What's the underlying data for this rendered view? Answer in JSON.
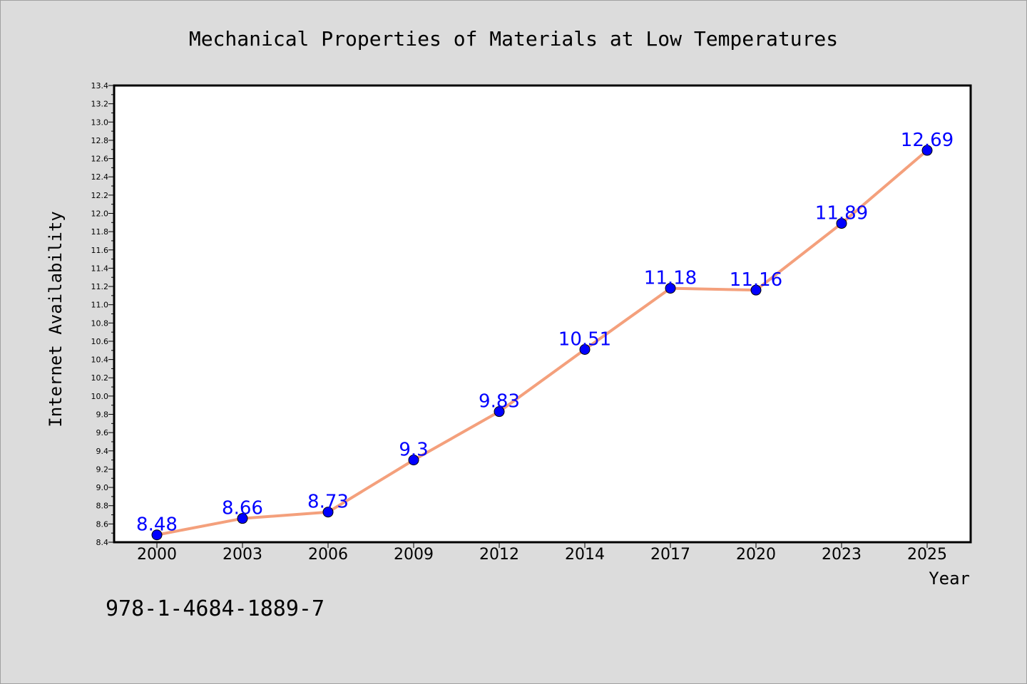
{
  "chart_data": {
    "type": "line",
    "title": "Mechanical Properties of Materials at Low Temperatures",
    "xlabel": "Year",
    "ylabel": "Internet Availability",
    "categories": [
      "2000",
      "2003",
      "2006",
      "2009",
      "2012",
      "2014",
      "2017",
      "2020",
      "2023",
      "2025"
    ],
    "values": [
      8.48,
      8.66,
      8.73,
      9.3,
      9.83,
      10.51,
      11.18,
      11.16,
      11.89,
      12.69
    ],
    "data_labels": [
      "8.48",
      "8.66",
      "8.73",
      "9.3",
      "9.83",
      "10.51",
      "11.18",
      "11.16",
      "11.89",
      "12.69"
    ],
    "ylim": [
      8.4,
      13.4
    ],
    "yticks": [
      "8.4",
      "8.6",
      "8.8",
      "9.0",
      "9.2",
      "9.4",
      "9.6",
      "9.8",
      "10.0",
      "10.2",
      "10.4",
      "10.6",
      "10.8",
      "11.0",
      "11.2",
      "11.4",
      "11.6",
      "11.8",
      "12.0",
      "12.2",
      "12.4",
      "12.6",
      "12.8",
      "13.0",
      "13.2",
      "13.4"
    ],
    "grid": false,
    "legend": "none",
    "line_color": "#f4a07c",
    "marker_color": "#0000ff",
    "label_color": "#0000ff"
  },
  "annotation": "978-1-4684-1889-7"
}
